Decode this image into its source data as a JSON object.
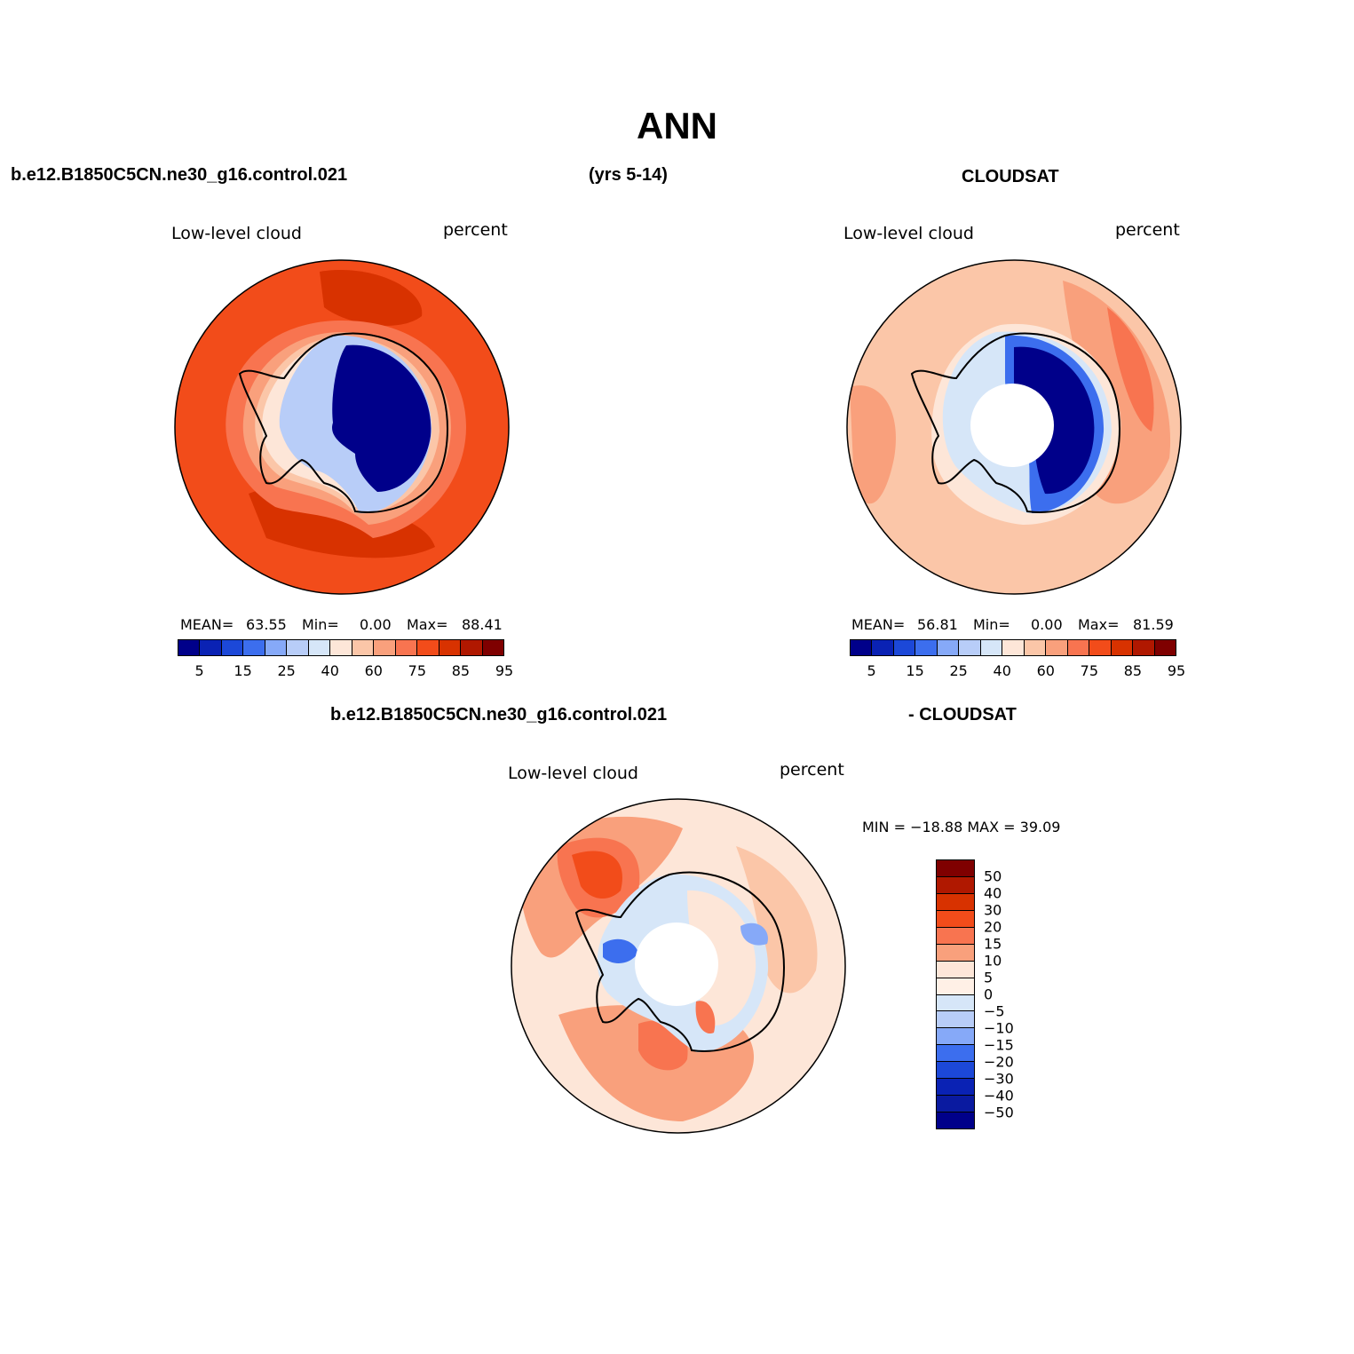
{
  "main_title": "ANN",
  "header": {
    "case_name": "b.e12.B1850C5CN.ne30_g16.control.021",
    "years": "(yrs 5-14)",
    "obs_name": "CLOUDSAT",
    "diff_case_name": "b.e12.B1850C5CN.ne30_g16.control.021",
    "diff_obs_name": "- CLOUDSAT"
  },
  "panels": [
    {
      "variable": "Low-level cloud",
      "units": "percent",
      "mean_label": "MEAN=",
      "mean": "63.55",
      "min_label": "Min=",
      "min": "0.00",
      "max_label": "Max=",
      "max": "88.41"
    },
    {
      "variable": "Low-level cloud",
      "units": "percent",
      "mean_label": "MEAN=",
      "mean": "56.81",
      "min_label": "Min=",
      "min": "0.00",
      "max_label": "Max=",
      "max": "81.59"
    },
    {
      "variable": "Low-level cloud",
      "units": "percent",
      "minmax_text": "MIN = −18.88  MAX =   39.09"
    }
  ],
  "colorbar": {
    "colors": [
      "#00008a",
      "#0a22b4",
      "#1c48d8",
      "#3c6eee",
      "#86a9f8",
      "#b8cdf8",
      "#d6e6f8",
      "#fde6d8",
      "#fbc6a8",
      "#f9a07c",
      "#f87450",
      "#f24c1a",
      "#d83200",
      "#b01800",
      "#7f0000"
    ],
    "labels": [
      "5",
      "15",
      "25",
      "40",
      "60",
      "75",
      "85",
      "95"
    ]
  },
  "diff_colorbar": {
    "colors": [
      "#7f0000",
      "#b01800",
      "#d83200",
      "#f24c1a",
      "#f87450",
      "#f9a07c",
      "#fde6d8",
      "#fff0e6",
      "#d6e6f8",
      "#b8cdf8",
      "#86a9f8",
      "#3c6eee",
      "#1c48d8",
      "#0a22b4",
      "#0a1aa0",
      "#00008a"
    ],
    "labels": [
      "50",
      "40",
      "30",
      "20",
      "15",
      "10",
      "5",
      "0",
      "−5",
      "−10",
      "−15",
      "−20",
      "−30",
      "−40",
      "−50"
    ]
  },
  "map_colors": {
    "red_dark": "#d83200",
    "red": "#f24c1a",
    "orange": "#f87450",
    "salmon": "#f9a07c",
    "peach": "#fbc6a8",
    "pale": "#fde6d8",
    "ice_pale": "#d6e6f8",
    "ice_light": "#b8cdf8",
    "ice_mid": "#86a9f8",
    "blue": "#3c6eee",
    "blue_dark": "#1c48d8",
    "navy": "#00008a"
  }
}
